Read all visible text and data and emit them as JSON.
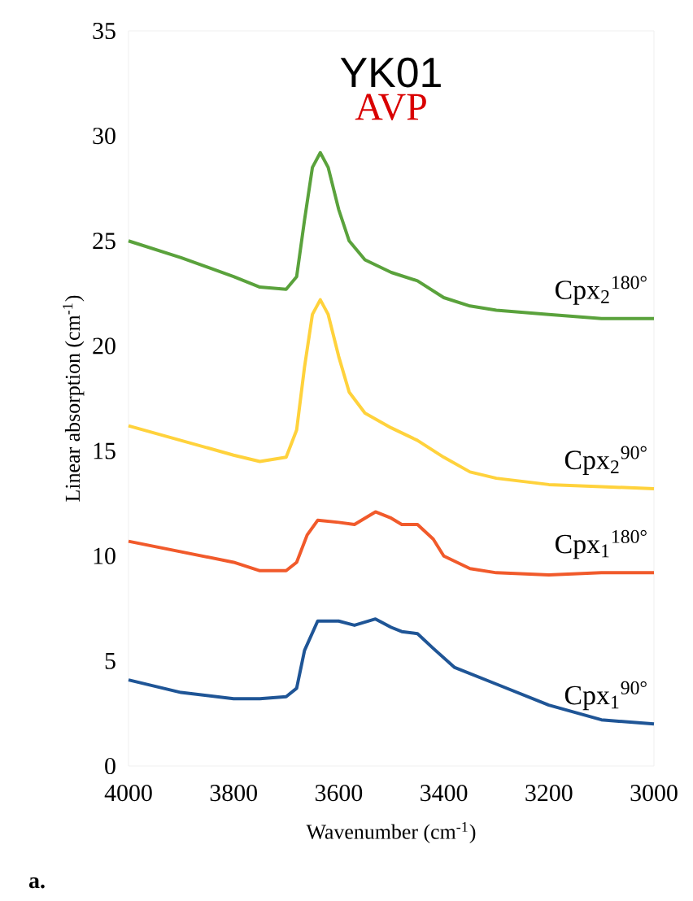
{
  "chart_data": {
    "type": "line",
    "title": "YK01",
    "subtitle": "AVP",
    "xlabel": "Wavenumber (cm$^{-1}$)",
    "ylabel": "Linear absorption (cm$^{-1}$)",
    "annotations": [
      "a."
    ],
    "xlim": [
      4000,
      3000
    ],
    "xticks": [
      4000,
      3800,
      3600,
      3400,
      3200,
      3000
    ],
    "ylim": [
      0,
      35
    ],
    "yticks": [
      0,
      5,
      10,
      15,
      20,
      25,
      30,
      35
    ],
    "grid": false,
    "legend": false,
    "marker": "none",
    "line_style": "solid",
    "series": [
      {
        "name": "Cpx$_{2}$$^{180°}$",
        "color": "#5aa23c",
        "x": [
          4000,
          3900,
          3800,
          3750,
          3700,
          3680,
          3665,
          3650,
          3635,
          3620,
          3600,
          3580,
          3550,
          3500,
          3450,
          3400,
          3350,
          3300,
          3200,
          3100,
          3000
        ],
        "values": [
          25,
          24.2,
          23.3,
          22.8,
          22.7,
          23.3,
          26,
          28.5,
          29.2,
          28.5,
          26.5,
          25,
          24.1,
          23.5,
          23.1,
          22.3,
          21.9,
          21.7,
          21.5,
          21.3,
          21.3
        ]
      },
      {
        "name": "Cpx$_{2}$$^{90°}$",
        "color": "#ffd23c",
        "x": [
          4000,
          3900,
          3800,
          3750,
          3700,
          3680,
          3665,
          3650,
          3635,
          3620,
          3600,
          3580,
          3550,
          3500,
          3450,
          3400,
          3350,
          3300,
          3200,
          3100,
          3000
        ],
        "values": [
          16.2,
          15.5,
          14.8,
          14.5,
          14.7,
          16,
          19,
          21.5,
          22.2,
          21.5,
          19.5,
          17.8,
          16.8,
          16.1,
          15.5,
          14.7,
          14.0,
          13.7,
          13.4,
          13.3,
          13.2
        ]
      },
      {
        "name": "Cpx$_{1}$$^{180°}$",
        "color": "#f15a2b",
        "x": [
          4000,
          3900,
          3800,
          3750,
          3700,
          3680,
          3660,
          3640,
          3600,
          3570,
          3530,
          3500,
          3480,
          3450,
          3420,
          3400,
          3350,
          3300,
          3200,
          3100,
          3000
        ],
        "values": [
          10.7,
          10.2,
          9.7,
          9.3,
          9.3,
          9.7,
          11,
          11.7,
          11.6,
          11.5,
          12.1,
          11.8,
          11.5,
          11.5,
          10.8,
          10,
          9.4,
          9.2,
          9.1,
          9.2,
          9.2
        ]
      },
      {
        "name": "Cpx$_{1}$$^{90°}$",
        "color": "#1f5596",
        "x": [
          4000,
          3900,
          3800,
          3750,
          3700,
          3680,
          3665,
          3640,
          3600,
          3570,
          3530,
          3500,
          3480,
          3450,
          3420,
          3380,
          3300,
          3200,
          3100,
          3000
        ],
        "values": [
          4.1,
          3.5,
          3.2,
          3.2,
          3.3,
          3.7,
          5.5,
          6.9,
          6.9,
          6.7,
          7.0,
          6.6,
          6.4,
          6.3,
          5.6,
          4.7,
          3.9,
          2.9,
          2.2,
          2.0
        ]
      }
    ]
  }
}
